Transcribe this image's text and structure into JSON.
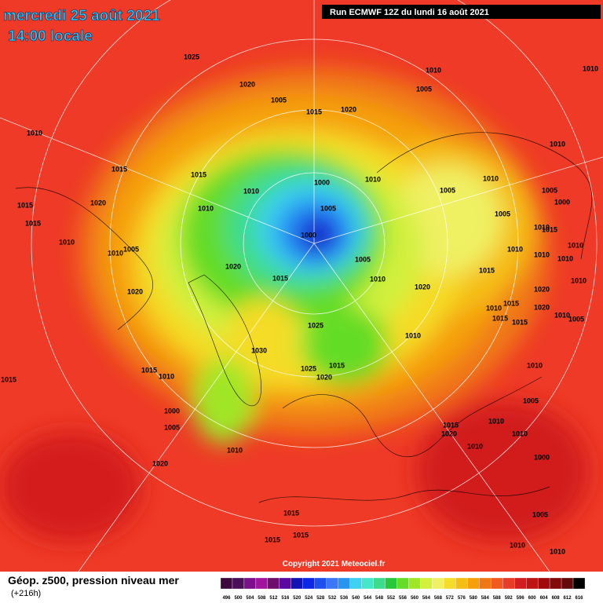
{
  "header": {
    "date": "mercredi 25 août 2021",
    "time": "14:00 locale",
    "run": "Run ECMWF 12Z du lundi 16 août 2021"
  },
  "map": {
    "copyright": "Copyright 2021 Meteociel.fr",
    "pressure_labels": [
      1025,
      1020,
      1005,
      1015,
      1020,
      1010,
      1005,
      1010,
      1010,
      1010,
      1015,
      1015,
      1010,
      1000,
      1010,
      1005,
      1010,
      1005,
      1000,
      1020,
      1015,
      1010,
      1005,
      1005,
      1015,
      1000,
      1010,
      1015,
      1010,
      1005,
      1010,
      1010,
      1010,
      1010,
      1005,
      1020,
      1015,
      1010,
      1020,
      1015,
      1010,
      1010,
      1020,
      1020,
      1015,
      1010,
      1015,
      1015,
      1020,
      1005,
      1010,
      1025,
      1010,
      1030,
      1015,
      1025,
      1010,
      1020,
      1015,
      1010,
      1015,
      1005,
      1000,
      1005,
      1015,
      1020,
      1010,
      1010,
      1010,
      1010,
      1000,
      1020,
      1005,
      1015,
      1015,
      1015,
      1010,
      1010
    ]
  },
  "footer": {
    "product": "Géop. z500, pression niveau mer",
    "lead": "(+216h)"
  },
  "legend": [
    {
      "value": 496,
      "color": "#3c0a3c"
    },
    {
      "value": 500,
      "color": "#4b0f5a"
    },
    {
      "value": 504,
      "color": "#7d0f8c"
    },
    {
      "value": 508,
      "color": "#a0149e"
    },
    {
      "value": 512,
      "color": "#6e0f6e"
    },
    {
      "value": 516,
      "color": "#5a0aa0"
    },
    {
      "value": 520,
      "color": "#1414b4"
    },
    {
      "value": 524,
      "color": "#0a28e6"
    },
    {
      "value": 528,
      "color": "#1e50f0"
    },
    {
      "value": 532,
      "color": "#3c78f5"
    },
    {
      "value": 536,
      "color": "#2896f0"
    },
    {
      "value": 540,
      "color": "#3cd2f0"
    },
    {
      "value": 544,
      "color": "#46e6c8"
    },
    {
      "value": 548,
      "color": "#3cdc8c"
    },
    {
      "value": 552,
      "color": "#28c83c"
    },
    {
      "value": 556,
      "color": "#64dc28"
    },
    {
      "value": 560,
      "color": "#a0e628"
    },
    {
      "value": 564,
      "color": "#d2f03c"
    },
    {
      "value": 568,
      "color": "#f0f064"
    },
    {
      "value": 572,
      "color": "#f5dc28"
    },
    {
      "value": 576,
      "color": "#f5be14"
    },
    {
      "value": 580,
      "color": "#f5a00a"
    },
    {
      "value": 584,
      "color": "#f07814"
    },
    {
      "value": 588,
      "color": "#f05a1e"
    },
    {
      "value": 592,
      "color": "#e63c28"
    },
    {
      "value": 596,
      "color": "#d21e1e"
    },
    {
      "value": 600,
      "color": "#be1414"
    },
    {
      "value": 604,
      "color": "#a00a0a"
    },
    {
      "value": 608,
      "color": "#820a0a"
    },
    {
      "value": 612,
      "color": "#640a0a"
    },
    {
      "value": 616,
      "color": "#000000"
    }
  ]
}
